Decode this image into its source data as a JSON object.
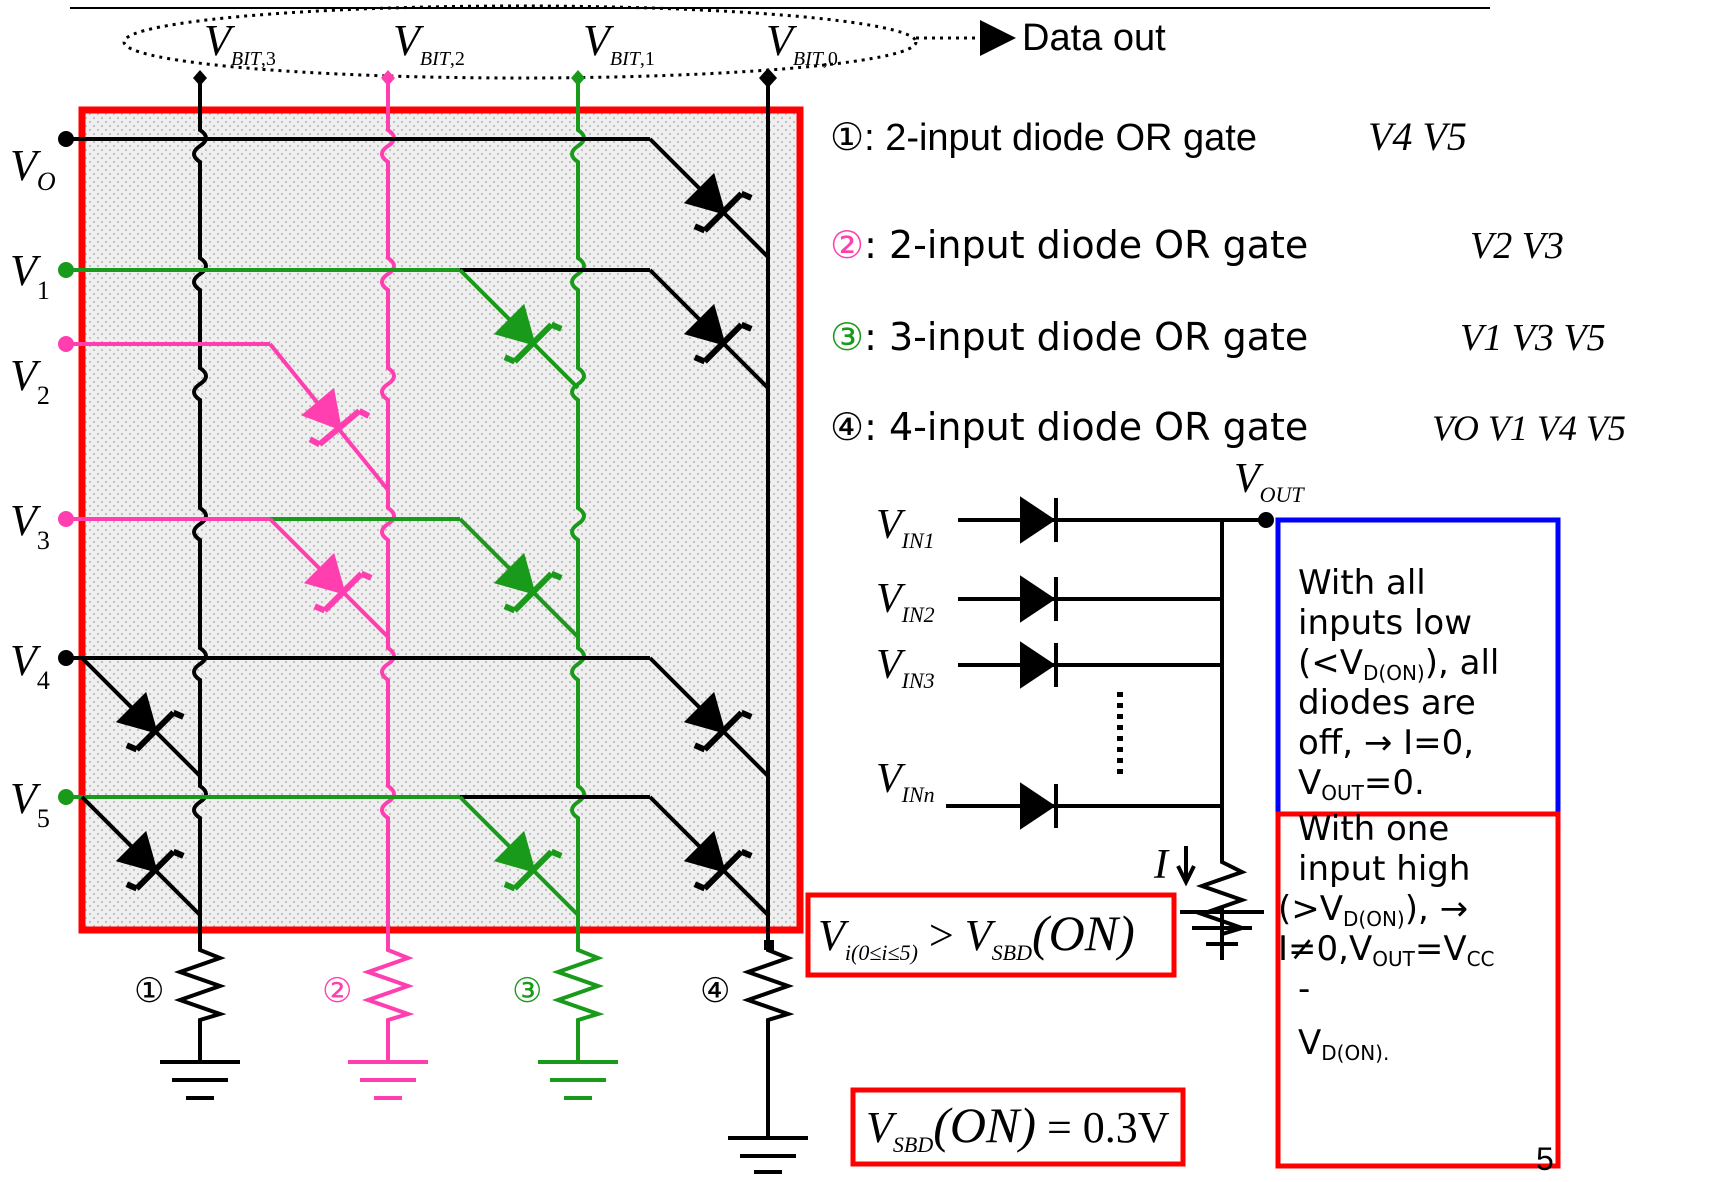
{
  "bitlines": [
    "V_{BIT,3}",
    "V_{BIT,2}",
    "V_{BIT,1}",
    "V_{BIT,0}"
  ],
  "bitline_labels": {
    "b3": {
      "main": "V",
      "sub": "BIT",
      "idx": ",3"
    },
    "b2": {
      "main": "V",
      "sub": "BIT",
      "idx": ",2"
    },
    "b1": {
      "main": "V",
      "sub": "BIT",
      "idx": ",1"
    },
    "b0": {
      "main": "V",
      "sub": "BIT",
      "idx": ",0"
    }
  },
  "data_out": "Data out",
  "word_lines": {
    "vo": {
      "main": "V",
      "sub": "O"
    },
    "v1": {
      "main": "V",
      "sub": "1"
    },
    "v2": {
      "main": "V",
      "sub": "2"
    },
    "v3": {
      "main": "V",
      "sub": "3"
    },
    "v4": {
      "main": "V",
      "sub": "4"
    },
    "v5": {
      "main": "V",
      "sub": "5"
    }
  },
  "gates": {
    "g1": {
      "marker": "①",
      "text": ": 2-input diode OR gate",
      "inputs": "V4 V5"
    },
    "g2": {
      "marker": "②",
      "text": ": 2-input diode OR gate",
      "inputs": "V2 V3"
    },
    "g3": {
      "marker": "③",
      "text": ": 3-input diode OR gate",
      "inputs": "V1 V3 V5"
    },
    "g4": {
      "marker": "④",
      "text": ": 4-input diode OR gate",
      "inputs": "VO V1 V4 V5"
    }
  },
  "resistor_markers": [
    "①",
    "②",
    "③",
    "④"
  ],
  "or_gate": {
    "vout": {
      "main": "V",
      "sub": "OUT"
    },
    "vin1": {
      "main": "V",
      "sub": "IN1"
    },
    "vin2": {
      "main": "V",
      "sub": "IN2"
    },
    "vin3": {
      "main": "V",
      "sub": "IN3"
    },
    "vinn": {
      "main": "V",
      "sub": "INn"
    },
    "current": "I"
  },
  "blue_box": {
    "l1": "With all",
    "l2": "inputs low",
    "l3a": "(<V",
    "l3sub": "D(ON)",
    "l3b": "), all",
    "l4": "diodes are",
    "l5": "off, → I=0,",
    "l6a": "V",
    "l6sub": "OUT",
    "l6b": "=0."
  },
  "red_box": {
    "l1": "With one",
    "l2": "input high",
    "l3a": "(>V",
    "l3sub": "D(ON)",
    "l3b": "), →",
    "l4a": "I≠0,V",
    "l4sub": "OUT",
    "l4b": "=V",
    "l4sub2": "CC",
    "l5": "-",
    "l6a": "V",
    "l6sub": "D(ON)."
  },
  "formula1": {
    "v": "V",
    "vsub": "i(0≤i≤5)",
    "gt": " > ",
    "v2": "V",
    "v2sub": "SBD",
    "on": "(ON)"
  },
  "formula2": {
    "v": "V",
    "vsub": "SBD",
    "on": "(ON)",
    "eq": " = 0.3V"
  },
  "page_number": "5",
  "colors": {
    "black": "#000000",
    "pink": "#ff3fb0",
    "green": "#1a9a1a",
    "red": "#ff0000",
    "blue": "#0000ff",
    "panel_fill": "#e9e9e9"
  }
}
